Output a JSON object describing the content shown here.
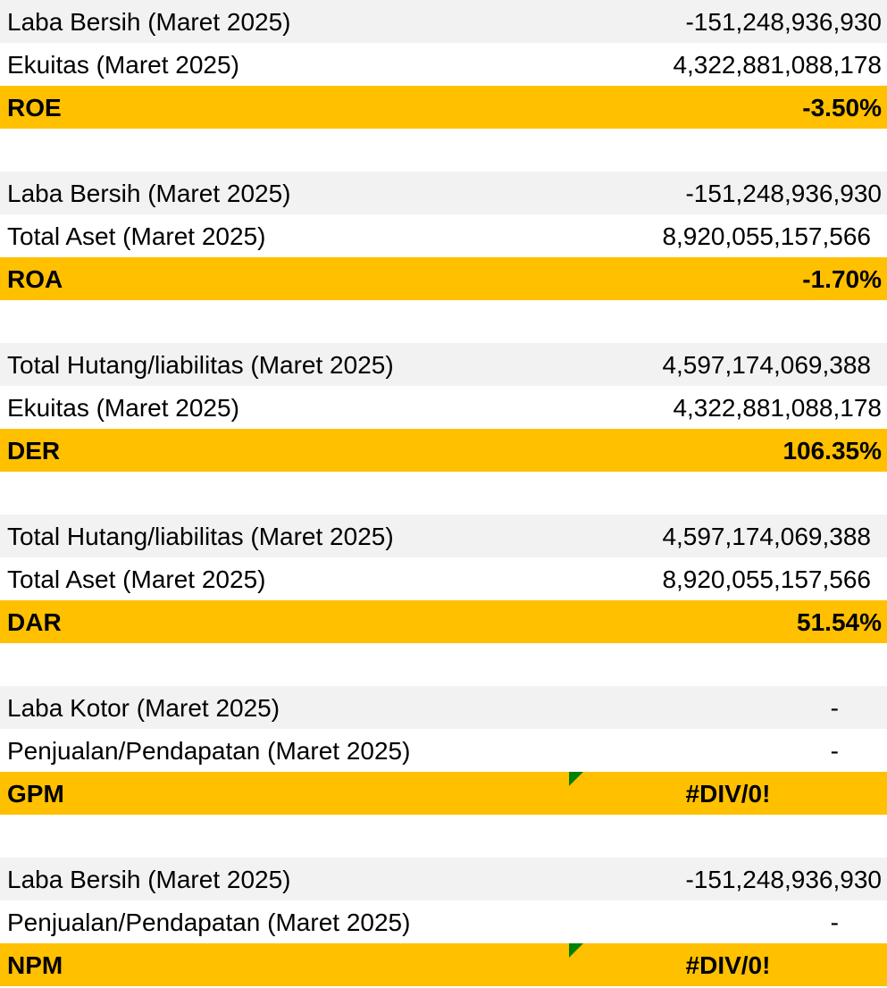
{
  "blocks": [
    {
      "rows": [
        {
          "label": "Laba Bersih (Maret 2025)",
          "value": "-151,248,936,930"
        },
        {
          "label": "Ekuitas (Maret 2025)",
          "value": "4,322,881,088,178"
        }
      ],
      "result": {
        "label": "ROE",
        "value": "-3.50%"
      }
    },
    {
      "rows": [
        {
          "label": "Laba Bersih (Maret 2025)",
          "value": "-151,248,936,930"
        },
        {
          "label": "Total Aset (Maret 2025)",
          "value": "8,920,055,157,566"
        }
      ],
      "result": {
        "label": "ROA",
        "value": "-1.70%"
      }
    },
    {
      "rows": [
        {
          "label": "Total Hutang/liabilitas (Maret 2025)",
          "value": "4,597,174,069,388"
        },
        {
          "label": "Ekuitas (Maret 2025)",
          "value": "4,322,881,088,178"
        }
      ],
      "result": {
        "label": "DER",
        "value": "106.35%"
      }
    },
    {
      "rows": [
        {
          "label": "Total Hutang/liabilitas (Maret 2025)",
          "value": "4,597,174,069,388"
        },
        {
          "label": "Total Aset (Maret 2025)",
          "value": "8,920,055,157,566"
        }
      ],
      "result": {
        "label": "DAR",
        "value": "51.54%"
      }
    },
    {
      "rows": [
        {
          "label": "Laba Kotor (Maret 2025)",
          "value": "-"
        },
        {
          "label": "Penjualan/Pendapatan (Maret 2025)",
          "value": "-"
        }
      ],
      "result": {
        "label": "GPM",
        "value": "#DIV/0!"
      }
    },
    {
      "rows": [
        {
          "label": "Laba Bersih (Maret 2025)",
          "value": "-151,248,936,930"
        },
        {
          "label": "Penjualan/Pendapatan (Maret 2025)",
          "value": "-"
        }
      ],
      "result": {
        "label": "NPM",
        "value": "#DIV/0!"
      }
    }
  ],
  "colors": {
    "header_fill": "#f2f2f2",
    "result_fill": "#ffc000",
    "error_indicator": "#008000"
  }
}
